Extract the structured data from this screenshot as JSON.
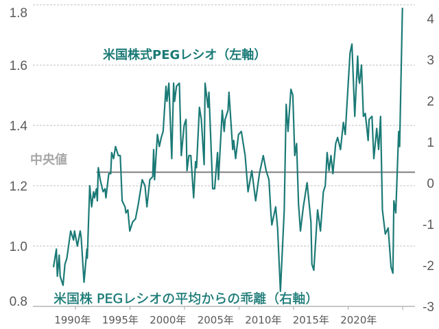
{
  "chart_data": {
    "type": "line",
    "title": "",
    "colors": {
      "series": "#1b7a76",
      "median": "#7f7f7f",
      "grid": "#bfbfbf",
      "axis_text": "#595959",
      "median_label": "#a6a6a6"
    },
    "left_axis": {
      "ylim": [
        0.8,
        1.8
      ],
      "ticks": [
        0.8,
        1.0,
        1.2,
        1.4,
        1.6,
        1.8
      ],
      "tick_labels": [
        "0.8",
        "1.0",
        "1.2",
        "1.4",
        "1.6",
        "1.8"
      ]
    },
    "right_axis": {
      "ylim": [
        -3,
        4
      ],
      "ticks": [
        -3,
        -2,
        -1,
        0,
        1,
        2,
        3,
        4
      ],
      "tick_labels": [
        "-3",
        "-2",
        "-1",
        "0",
        "1",
        "2",
        "3",
        "4"
      ]
    },
    "x_tick_labels": [
      "1990年",
      "1995年",
      "2000年",
      "2005年",
      "2010年",
      "2015年",
      "2020年"
    ],
    "x_tick_years": [
      1990,
      1995,
      2000,
      2005,
      2010,
      2015,
      2020
    ],
    "grid": "horizontal dashed",
    "annotations": {
      "left_series": "米国株式PEGレシオ（左軸）",
      "right_series": "米国株 PEGレシオの平均からの乖離（右軸）",
      "median": "中央値"
    },
    "median_value": 1.245,
    "median_start_year": 1992.5,
    "series": [
      {
        "axis": "left",
        "points": [
          [
            1988.0,
            0.93
          ],
          [
            1988.3,
            0.99
          ],
          [
            1988.4,
            0.9
          ],
          [
            1988.6,
            0.97
          ],
          [
            1988.7,
            0.9
          ],
          [
            1989.0,
            0.87
          ],
          [
            1989.2,
            0.94
          ],
          [
            1989.4,
            0.96
          ],
          [
            1989.8,
            1.05
          ],
          [
            1990.1,
            1.02
          ],
          [
            1990.2,
            1.05
          ],
          [
            1990.5,
            1.0
          ],
          [
            1990.8,
            1.05
          ],
          [
            1990.9,
            1.03
          ],
          [
            1991.2,
            0.88
          ],
          [
            1991.5,
            0.99
          ],
          [
            1991.55,
            0.96
          ],
          [
            1991.8,
            1.2
          ],
          [
            1992.0,
            1.13
          ],
          [
            1992.2,
            1.18
          ],
          [
            1992.3,
            1.16
          ],
          [
            1992.5,
            1.19
          ],
          [
            1992.6,
            1.15
          ],
          [
            1992.7,
            1.26
          ],
          [
            1992.9,
            1.22
          ],
          [
            1993.2,
            1.18
          ],
          [
            1993.4,
            1.19
          ],
          [
            1993.5,
            1.16
          ],
          [
            1993.8,
            1.24
          ],
          [
            1994.0,
            1.24
          ],
          [
            1994.1,
            1.31
          ],
          [
            1994.3,
            1.29
          ],
          [
            1994.5,
            1.33
          ],
          [
            1994.8,
            1.3
          ],
          [
            1995.0,
            1.3
          ],
          [
            1995.2,
            1.15
          ],
          [
            1995.5,
            1.13
          ],
          [
            1995.6,
            1.11
          ],
          [
            1995.8,
            1.12
          ],
          [
            1996.0,
            1.05
          ],
          [
            1996.3,
            1.08
          ],
          [
            1996.6,
            1.09
          ],
          [
            1996.9,
            1.14
          ],
          [
            1997.1,
            1.18
          ],
          [
            1997.3,
            1.22
          ],
          [
            1997.6,
            1.2
          ],
          [
            1997.8,
            1.13
          ],
          [
            1998.1,
            1.22
          ],
          [
            1998.4,
            1.23
          ],
          [
            1998.5,
            1.32
          ],
          [
            1998.6,
            1.22
          ],
          [
            1998.9,
            1.37
          ],
          [
            1999.1,
            1.33
          ],
          [
            1999.3,
            1.36
          ],
          [
            1999.5,
            1.38
          ],
          [
            1999.8,
            1.53
          ],
          [
            1999.9,
            1.48
          ],
          [
            2000.1,
            1.54
          ],
          [
            2000.4,
            1.29
          ],
          [
            2000.6,
            1.54
          ],
          [
            2000.7,
            1.48
          ],
          [
            2000.9,
            1.53
          ],
          [
            2001.2,
            1.54
          ],
          [
            2001.4,
            1.3
          ],
          [
            2001.7,
            1.4
          ],
          [
            2001.9,
            1.42
          ],
          [
            2002.0,
            1.25
          ],
          [
            2002.2,
            1.3
          ],
          [
            2002.4,
            1.3
          ],
          [
            2002.7,
            1.16
          ],
          [
            2002.9,
            1.28
          ],
          [
            2003.0,
            1.26
          ],
          [
            2003.3,
            1.46
          ],
          [
            2003.5,
            1.42
          ],
          [
            2003.8,
            1.27
          ],
          [
            2003.9,
            1.54
          ],
          [
            2004.2,
            1.46
          ],
          [
            2004.3,
            1.51
          ],
          [
            2004.7,
            1.19
          ],
          [
            2004.9,
            1.19
          ],
          [
            2005.2,
            1.31
          ],
          [
            2005.3,
            1.22
          ],
          [
            2005.7,
            1.45
          ],
          [
            2005.9,
            1.38
          ],
          [
            2006.0,
            1.42
          ],
          [
            2006.3,
            1.45
          ],
          [
            2006.4,
            1.51
          ],
          [
            2006.8,
            1.32
          ],
          [
            2006.9,
            1.35
          ],
          [
            2007.1,
            1.29
          ],
          [
            2007.4,
            1.37
          ],
          [
            2007.7,
            1.38
          ],
          [
            2008.1,
            1.3
          ],
          [
            2008.4,
            1.18
          ],
          [
            2008.8,
            1.25
          ],
          [
            2009.2,
            1.15
          ],
          [
            2009.6,
            1.24
          ],
          [
            2010.0,
            1.3
          ],
          [
            2010.3,
            1.25
          ],
          [
            2010.6,
            1.22
          ],
          [
            2010.8,
            1.11
          ],
          [
            2010.9,
            1.07
          ],
          [
            2011.3,
            1.13
          ],
          [
            2011.5,
            1.06
          ],
          [
            2011.8,
            0.85
          ],
          [
            2012.2,
            1.12
          ],
          [
            2012.4,
            1.47
          ],
          [
            2012.6,
            1.38
          ],
          [
            2012.9,
            1.52
          ],
          [
            2013.1,
            1.5
          ],
          [
            2013.3,
            1.3
          ],
          [
            2013.5,
            1.34
          ],
          [
            2013.7,
            1.14
          ],
          [
            2013.9,
            1.05
          ],
          [
            2014.2,
            1.13
          ],
          [
            2014.6,
            1.21
          ],
          [
            2015.0,
            1.08
          ],
          [
            2015.1,
            0.94
          ],
          [
            2015.3,
            0.92
          ],
          [
            2015.7,
            1.12
          ],
          [
            2016.0,
            1.05
          ],
          [
            2016.3,
            1.18
          ],
          [
            2016.5,
            1.2
          ],
          [
            2016.7,
            1.31
          ],
          [
            2016.9,
            1.25
          ],
          [
            2017.1,
            1.3
          ],
          [
            2017.3,
            1.24
          ],
          [
            2017.6,
            1.34
          ],
          [
            2017.8,
            1.36
          ],
          [
            2018.1,
            1.32
          ],
          [
            2018.4,
            1.41
          ],
          [
            2018.6,
            1.37
          ],
          [
            2018.8,
            1.48
          ],
          [
            2019.1,
            1.64
          ],
          [
            2019.3,
            1.67
          ],
          [
            2019.6,
            1.43
          ],
          [
            2019.9,
            1.63
          ],
          [
            2020.0,
            1.56
          ],
          [
            2020.1,
            1.54
          ],
          [
            2020.3,
            1.6
          ],
          [
            2020.5,
            1.43
          ],
          [
            2020.7,
            1.44
          ],
          [
            2021.0,
            1.35
          ],
          [
            2021.1,
            1.42
          ],
          [
            2021.4,
            1.43
          ],
          [
            2021.6,
            1.29
          ],
          [
            2021.9,
            1.39
          ],
          [
            2022.1,
            1.32
          ],
          [
            2022.3,
            1.43
          ],
          [
            2022.5,
            1.12
          ],
          [
            2022.8,
            1.04
          ],
          [
            2023.1,
            1.06
          ],
          [
            2023.4,
            0.93
          ],
          [
            2023.6,
            0.91
          ],
          [
            2023.7,
            1.15
          ],
          [
            2023.9,
            1.11
          ],
          [
            2024.2,
            1.38
          ],
          [
            2024.3,
            1.33
          ],
          [
            2024.6,
            1.79
          ]
        ]
      }
    ]
  }
}
